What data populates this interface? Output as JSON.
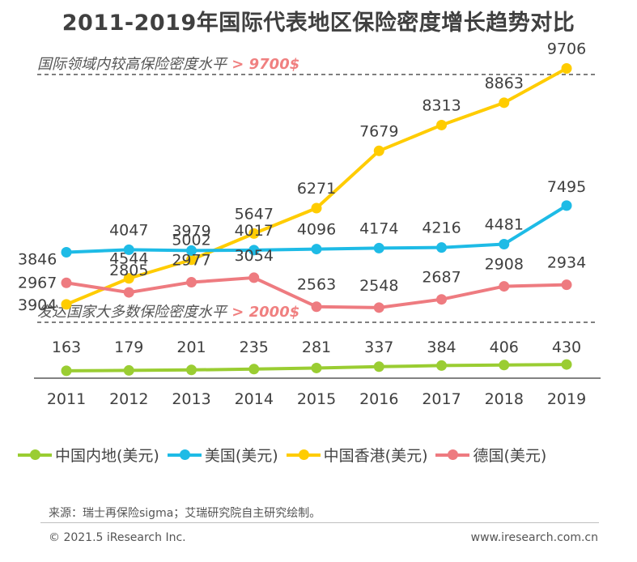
{
  "title": "2011-2019年国际代表地区保险密度增长趋势对比",
  "ref_lines": [
    {
      "label": "国际领域内较高保险密度水平",
      "value_text": "> 9700$"
    },
    {
      "label": "发达国家大多数保险密度水平",
      "value_text": "> 2000$"
    }
  ],
  "colors": {
    "china": "#9acd32",
    "usa": "#1ebbe6",
    "hongkong": "#ffcc00",
    "germany": "#ee7b80",
    "highlight": "#f08080",
    "axis": "#595959"
  },
  "legend": [
    {
      "label": "中国内地(美元)",
      "color": "#9acd32"
    },
    {
      "label": "美国(美元)",
      "color": "#1ebbe6"
    },
    {
      "label": "中国香港(美元)",
      "color": "#ffcc00"
    },
    {
      "label": "德国(美元)",
      "color": "#ee7b80"
    }
  ],
  "source": "来源：瑞士再保险sigma；艾瑞研究院自主研究绘制。",
  "copyright": "© 2021.5 iResearch Inc.",
  "website": "www.iresearch.com.cn",
  "chart_data": {
    "type": "line",
    "categories": [
      "2011",
      "2012",
      "2013",
      "2014",
      "2015",
      "2016",
      "2017",
      "2018",
      "2019"
    ],
    "series": [
      {
        "name": "中国香港(美元)",
        "values": [
          3904,
          4544,
          5002,
          5647,
          6271,
          7679,
          8313,
          8863,
          9706
        ]
      },
      {
        "name": "美国(美元)",
        "values": [
          3846,
          4047,
          3979,
          4017,
          4096,
          4174,
          4216,
          4481,
          7495
        ]
      },
      {
        "name": "德国(美元)",
        "values": [
          2967,
          2805,
          2977,
          3054,
          2563,
          2548,
          2687,
          2908,
          2934
        ]
      },
      {
        "name": "中国内地(美元)",
        "values": [
          163,
          179,
          201,
          235,
          281,
          337,
          384,
          406,
          430
        ]
      }
    ]
  }
}
